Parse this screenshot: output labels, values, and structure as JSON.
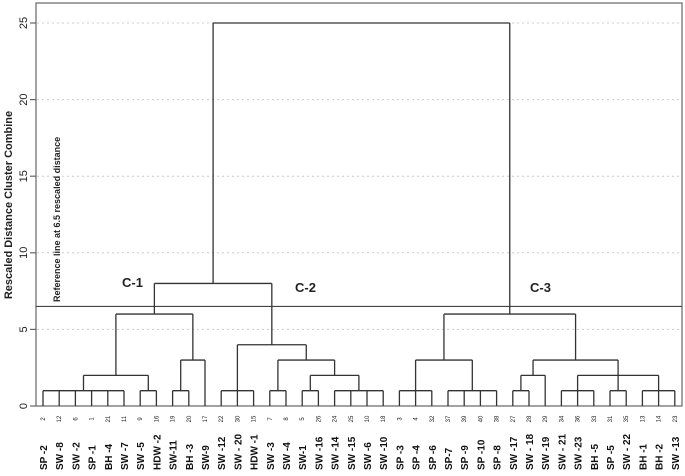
{
  "chart_data": {
    "type": "dendrogram",
    "ylabel": "Rescaled Distance Cluster Combine",
    "ylim": [
      0,
      25
    ],
    "yticks": [
      0,
      5,
      10,
      15,
      20,
      25
    ],
    "grid": true,
    "reference_line": {
      "value": 6.5,
      "label": "Reference line at 6.5 rescaled distance"
    },
    "cluster_labels": [
      "C-1",
      "C-2",
      "C-3"
    ],
    "leaves": [
      {
        "num": "2",
        "name": "SP -2"
      },
      {
        "num": "12",
        "name": "SW -8"
      },
      {
        "num": "6",
        "name": "SW -2"
      },
      {
        "num": "1",
        "name": "SP -1"
      },
      {
        "num": "21",
        "name": "BH -4"
      },
      {
        "num": "11",
        "name": "SW -7"
      },
      {
        "num": "9",
        "name": "SW -5"
      },
      {
        "num": "16",
        "name": "HDW -2"
      },
      {
        "num": "19",
        "name": "SW-11"
      },
      {
        "num": "20",
        "name": "BH -3"
      },
      {
        "num": "17",
        "name": "SW-9"
      },
      {
        "num": "22",
        "name": "SW -12"
      },
      {
        "num": "30",
        "name": "SW - 20"
      },
      {
        "num": "15",
        "name": "HDW -1"
      },
      {
        "num": "7",
        "name": "SW -3"
      },
      {
        "num": "8",
        "name": "SW -4"
      },
      {
        "num": "5",
        "name": "SW-1"
      },
      {
        "num": "26",
        "name": "SW -16"
      },
      {
        "num": "24",
        "name": "SW -14"
      },
      {
        "num": "25",
        "name": "SW -15"
      },
      {
        "num": "10",
        "name": "SW -6"
      },
      {
        "num": "18",
        "name": "SW -10"
      },
      {
        "num": "3",
        "name": "SP -3"
      },
      {
        "num": "4",
        "name": "SP -4"
      },
      {
        "num": "32",
        "name": "SP -6"
      },
      {
        "num": "37",
        "name": "SP-7"
      },
      {
        "num": "39",
        "name": "SP -9"
      },
      {
        "num": "40",
        "name": "SP -10"
      },
      {
        "num": "38",
        "name": "SP -8"
      },
      {
        "num": "27",
        "name": "SW -17"
      },
      {
        "num": "28",
        "name": "SW - 18"
      },
      {
        "num": "29",
        "name": "SW -19"
      },
      {
        "num": "34",
        "name": "SW - 21"
      },
      {
        "num": "36",
        "name": "SW -23"
      },
      {
        "num": "33",
        "name": "BH -5"
      },
      {
        "num": "31",
        "name": "SP -5"
      },
      {
        "num": "35",
        "name": "SW - 22"
      },
      {
        "num": "13",
        "name": "BH -1"
      },
      {
        "num": "14",
        "name": "BH -2"
      },
      {
        "num": "23",
        "name": "SW -13"
      }
    ],
    "tree": {
      "h": 25,
      "c": [
        {
          "h": 8,
          "c": [
            {
              "h": 6,
              "c": [
                {
                  "h": 2,
                  "c": [
                    {
                      "h": 1,
                      "c": [
                        0,
                        1,
                        2,
                        3,
                        4,
                        5
                      ]
                    },
                    {
                      "h": 1,
                      "c": [
                        6,
                        7
                      ]
                    }
                  ]
                },
                {
                  "h": 3,
                  "c": [
                    {
                      "h": 1,
                      "c": [
                        8,
                        9
                      ]
                    },
                    10
                  ]
                }
              ]
            },
            {
              "h": 4,
              "c": [
                {
                  "h": 1,
                  "c": [
                    11,
                    12,
                    13
                  ]
                },
                {
                  "h": 3,
                  "c": [
                    {
                      "h": 1,
                      "c": [
                        14,
                        15
                      ]
                    },
                    {
                      "h": 2,
                      "c": [
                        {
                          "h": 1,
                          "c": [
                            16,
                            17
                          ]
                        },
                        {
                          "h": 1,
                          "c": [
                            18,
                            19,
                            20,
                            21
                          ]
                        }
                      ]
                    }
                  ]
                }
              ]
            }
          ]
        },
        {
          "h": 6,
          "c": [
            {
              "h": 3,
              "c": [
                {
                  "h": 1,
                  "c": [
                    22,
                    23,
                    24
                  ]
                },
                {
                  "h": 1,
                  "c": [
                    25,
                    26,
                    27,
                    28
                  ]
                }
              ]
            },
            {
              "h": 3,
              "c": [
                {
                  "h": 2,
                  "c": [
                    {
                      "h": 1,
                      "c": [
                        29,
                        30
                      ]
                    },
                    31
                  ]
                },
                {
                  "h": 2,
                  "c": [
                    {
                      "h": 1,
                      "c": [
                        32,
                        33,
                        34
                      ]
                    },
                    {
                      "h": 1,
                      "c": [
                        35,
                        36
                      ]
                    },
                    {
                      "h": 1,
                      "c": [
                        37,
                        38,
                        39
                      ]
                    }
                  ]
                }
              ]
            }
          ]
        }
      ]
    }
  }
}
